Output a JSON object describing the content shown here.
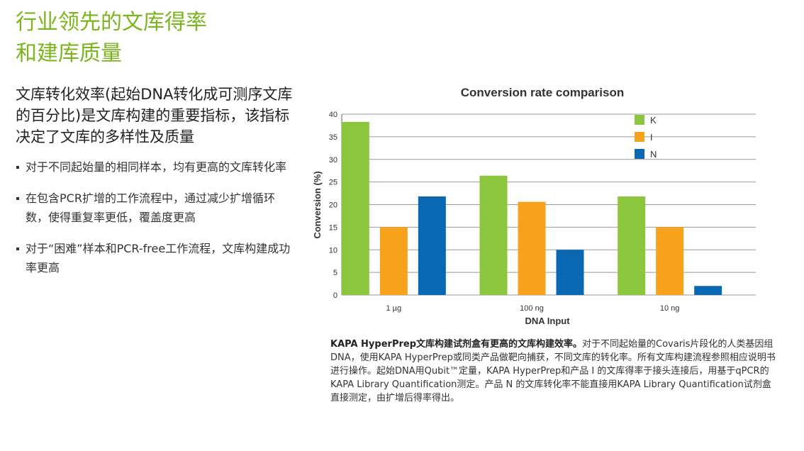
{
  "heading": {
    "line1": "行业领先的文库得率",
    "line2": "和建库质量"
  },
  "subheading": "文库转化效率(起始DNA转化成可测序文库的百分比)是文库构建的重要指标，该指标决定了文库的多样性及质量",
  "bullets": [
    "对于不同起始量的相同样本，均有更高的文库转化率",
    "在包含PCR扩增的工作流程中，通过减少扩增循环数，使得重复率更低，覆盖度更高",
    "对于“困难”样本和PCR-free工作流程，文库构建成功率更高"
  ],
  "chart_data": {
    "type": "bar",
    "title": "Conversion rate comparison",
    "xlabel": "DNA Input",
    "ylabel": "Conversion (%)",
    "categories": [
      "1 µg",
      "100 ng",
      "10 ng"
    ],
    "ylim": [
      0,
      40
    ],
    "yticks": [
      0,
      5,
      10,
      15,
      20,
      25,
      30,
      35,
      40
    ],
    "grid": true,
    "legend_position": "top-right",
    "series": [
      {
        "name": "K",
        "color": "#8cc63f",
        "values": [
          38.3,
          26.4,
          21.8
        ]
      },
      {
        "name": "I",
        "color": "#f7a21b",
        "values": [
          15.0,
          20.6,
          15.0
        ]
      },
      {
        "name": "N",
        "color": "#0a68b3",
        "values": [
          21.8,
          10.0,
          2.0
        ]
      }
    ]
  },
  "caption": {
    "bold": "KAPA HyperPrep文库构建试剂盒有更高的文库构建效率。",
    "text": "对于不同起始量的Covaris片段化的人类基因组DNA，使用KAPA HyperPrep或同类产品做靶向捕获，不同文库的转化率。所有文库构建流程参照相应说明书进行操作。起始DNA用Qubit™定量，KAPA HyperPrep和产品 I 的文库得率于接头连接后，用基于qPCR的KAPA Library Quantification测定。产品 N 的文库转化率不能直接用KAPA Library Quantification试剂盒直接测定，由扩增后得率得出。"
  }
}
